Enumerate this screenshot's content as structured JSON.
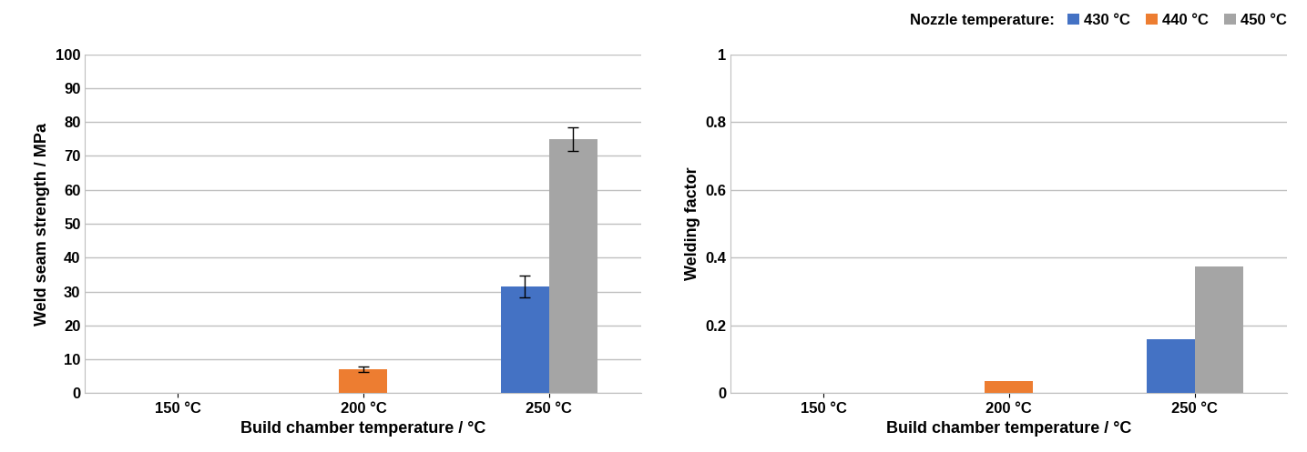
{
  "chart_data": [
    {
      "type": "bar",
      "x_label": "Build chamber temperature / °C",
      "y_label": "Weld seam strength / MPa",
      "categories": [
        "150 °C",
        "200 °C",
        "250 °C"
      ],
      "ylim": [
        0,
        100
      ],
      "yticks": [
        0,
        10,
        20,
        30,
        40,
        50,
        60,
        70,
        80,
        90,
        100
      ],
      "grid": true,
      "series": [
        {
          "name": "430 °C",
          "color": "#4472c4",
          "values": [
            null,
            null,
            31.5
          ],
          "errors": [
            null,
            null,
            3.2
          ]
        },
        {
          "name": "440 °C",
          "color": "#ed7d31",
          "values": [
            null,
            7.2,
            null
          ],
          "errors": [
            null,
            0.8,
            null
          ]
        },
        {
          "name": "450 °C",
          "color": "#a5a5a5",
          "values": [
            null,
            null,
            75
          ],
          "errors": [
            null,
            null,
            3.5
          ]
        }
      ]
    },
    {
      "type": "bar",
      "x_label": "Build chamber temperature / °C",
      "y_label": "Welding factor",
      "categories": [
        "150 °C",
        "200 °C",
        "250 °C"
      ],
      "ylim": [
        0,
        1
      ],
      "yticks": [
        0,
        0.2,
        0.4,
        0.6,
        0.8,
        1
      ],
      "grid": true,
      "legend": "upper right",
      "legend_title": "Nozzle temperature:",
      "series": [
        {
          "name": "430 °C",
          "color": "#4472c4",
          "values": [
            null,
            null,
            0.16
          ]
        },
        {
          "name": "440 °C",
          "color": "#ed7d31",
          "values": [
            null,
            0.035,
            null
          ]
        },
        {
          "name": "450 °C",
          "color": "#a5a5a5",
          "values": [
            null,
            null,
            0.375
          ]
        }
      ]
    }
  ]
}
